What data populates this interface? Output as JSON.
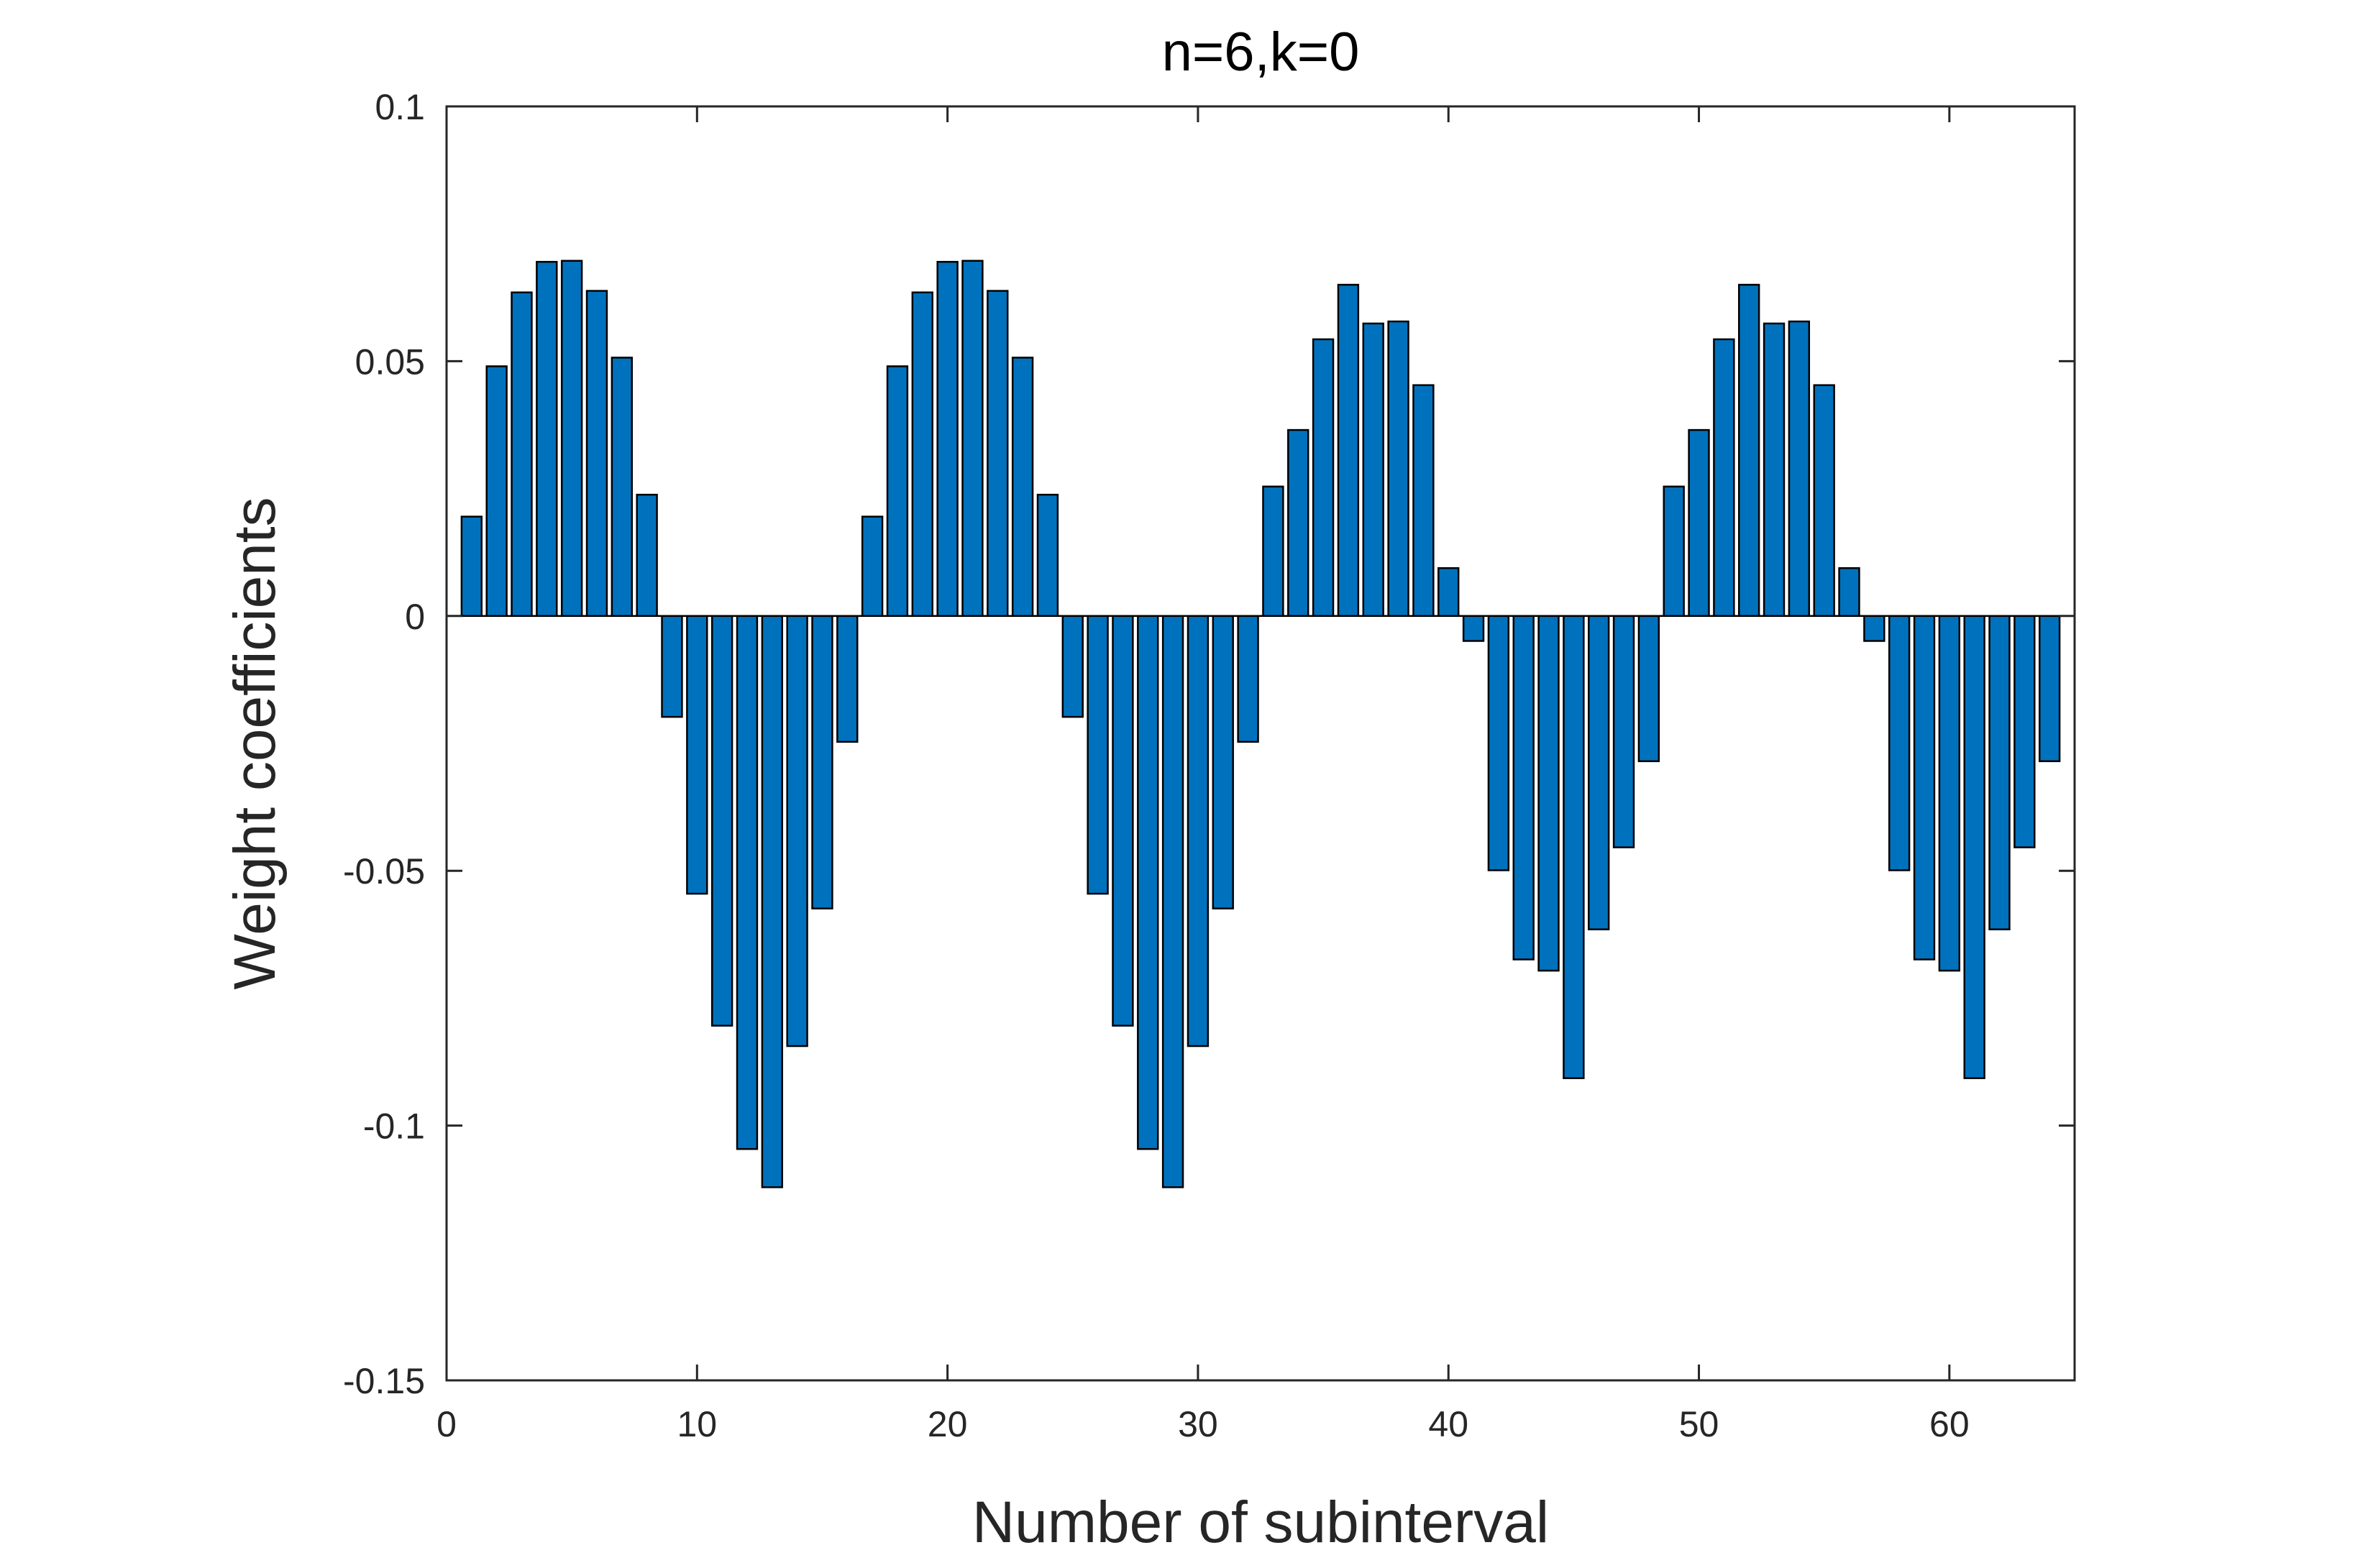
{
  "chart_data": {
    "type": "bar",
    "title": "n=6,k=0",
    "xlabel": "Number of subinterval",
    "ylabel": "Weight coefficients",
    "xlim": [
      0,
      65
    ],
    "ylim": [
      -0.15,
      0.1
    ],
    "xticks": [
      0,
      10,
      20,
      30,
      40,
      50,
      60
    ],
    "xtick_labels": [
      "0",
      "10",
      "20",
      "30",
      "40",
      "50",
      "60"
    ],
    "yticks": [
      0.1,
      0.05,
      0,
      -0.05,
      -0.1,
      -0.15
    ],
    "ytick_labels": [
      "0.1",
      "0.05",
      "0",
      "-0.05",
      "-0.1",
      "-0.15"
    ],
    "grid": false,
    "bar_color": "#0072BD",
    "edge_color": "#000000",
    "x": [
      1,
      2,
      3,
      4,
      5,
      6,
      7,
      8,
      9,
      10,
      11,
      12,
      13,
      14,
      15,
      16,
      17,
      18,
      19,
      20,
      21,
      22,
      23,
      24,
      25,
      26,
      27,
      28,
      29,
      30,
      31,
      32,
      33,
      34,
      35,
      36,
      37,
      38,
      39,
      40,
      41,
      42,
      43,
      44,
      45,
      46,
      47,
      48,
      49,
      50,
      51,
      52,
      53,
      54,
      55,
      56,
      57,
      58,
      59,
      60,
      61,
      62,
      63,
      64
    ],
    "values": [
      0.0195,
      0.049,
      0.0635,
      0.0695,
      0.0697,
      0.0638,
      0.0507,
      0.0238,
      -0.0198,
      -0.0545,
      -0.0804,
      -0.1046,
      -0.1121,
      -0.0844,
      -0.0574,
      -0.0247,
      0.0195,
      0.049,
      0.0635,
      0.0695,
      0.0697,
      0.0638,
      0.0507,
      0.0238,
      -0.0198,
      -0.0545,
      -0.0804,
      -0.1046,
      -0.1121,
      -0.0844,
      -0.0574,
      -0.0247,
      0.0254,
      0.0365,
      0.0543,
      0.065,
      0.0574,
      0.0578,
      0.0453,
      0.0094,
      -0.0049,
      -0.0499,
      -0.0674,
      -0.0696,
      -0.0907,
      -0.0615,
      -0.0454,
      -0.0285,
      0.0254,
      0.0365,
      0.0543,
      0.065,
      0.0574,
      0.0578,
      0.0453,
      0.0094,
      -0.0049,
      -0.0499,
      -0.0674,
      -0.0696,
      -0.0907,
      -0.0615,
      -0.0454,
      -0.0285
    ]
  }
}
